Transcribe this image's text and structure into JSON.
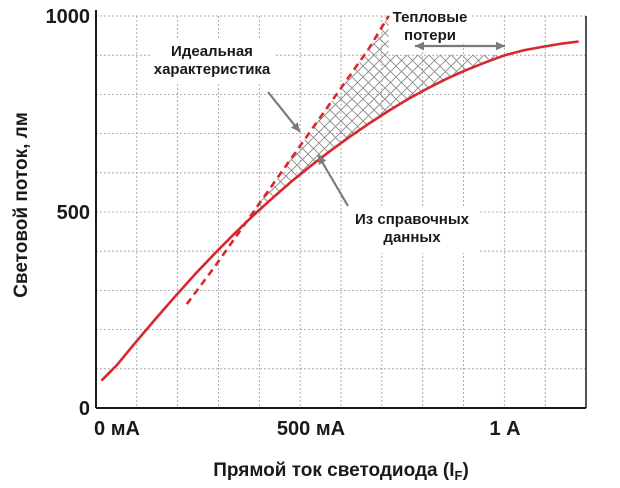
{
  "chart_data": {
    "type": "line",
    "title": "",
    "xlabel": "Прямой ток светодиода (I",
    "xlabel_sub": "F",
    "xlabel_close": ")",
    "ylabel": "Световой поток, лм",
    "xlim": [
      0,
      1200
    ],
    "ylim": [
      0,
      1000
    ],
    "grid": true,
    "x_ticks": [
      {
        "value": 0,
        "label": "0 мА"
      },
      {
        "value": 500,
        "label": "500 мА"
      },
      {
        "value": 1000,
        "label": "1 А"
      }
    ],
    "y_ticks": [
      {
        "value": 0,
        "label": "0"
      },
      {
        "value": 500,
        "label": "500"
      },
      {
        "value": 1000,
        "label": "1000"
      }
    ],
    "series": [
      {
        "style": "dashed",
        "color": "#d7282f",
        "x": [
          180,
          250,
          300,
          350,
          400,
          450,
          500,
          550,
          600,
          650,
          700
        ],
        "y": [
          265,
          358,
          428,
          498,
          568,
          638,
          708,
          778,
          848,
          918,
          1000
        ]
      },
      {
        "style": "solid",
        "color": "#d7282f",
        "x": [
          -40,
          0,
          50,
          100,
          150,
          200,
          250,
          300,
          350,
          400,
          450,
          500,
          550,
          600,
          650,
          700,
          750,
          800,
          850,
          900,
          950,
          1000,
          1050,
          1100,
          1150,
          1190
        ],
        "y": [
          70,
          110,
          170,
          228,
          285,
          340,
          392,
          442,
          490,
          535,
          578,
          618,
          656,
          692,
          726,
          758,
          788,
          815,
          840,
          862,
          882,
          900,
          913,
          922,
          930,
          935
        ]
      }
    ],
    "annotations": [
      {
        "lines": [
          "Идеальная",
          "характеристика"
        ]
      },
      {
        "lines": [
          "Тепловые",
          "потери"
        ]
      },
      {
        "lines": [
          "Из справочных",
          "данных"
        ]
      }
    ],
    "colors": {
      "curve": "#d7282f",
      "grid": "#9a9a9a",
      "hatch": "#8a8a8a",
      "axis": "#1a1a1a",
      "arrow": "#7a7a7a"
    }
  }
}
